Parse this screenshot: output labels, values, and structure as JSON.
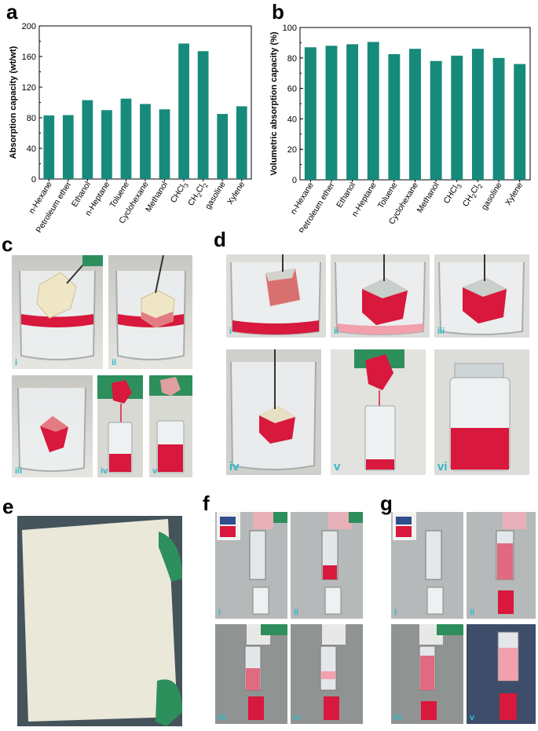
{
  "panels": {
    "a": "a",
    "b": "b",
    "c": "c",
    "d": "d",
    "e": "e",
    "f": "f",
    "g": "g"
  },
  "colors": {
    "bar": "#168a7b",
    "liquid_red": "#d8183c",
    "glove_green": "#2d8f5c",
    "roman_label": "#2fb8c7"
  },
  "chart_data": [
    {
      "type": "bar",
      "panel": "a",
      "categories": [
        "n-Hexane",
        "Petroleum ether",
        "Ethanol",
        "n-Heptane",
        "Toluene",
        "Cyclohexane",
        "Methanol",
        "CHCl3",
        "CH2Cl2",
        "gasoline",
        "Xylene"
      ],
      "values": [
        83,
        83.5,
        103,
        90,
        105,
        98,
        91,
        177,
        167,
        85,
        95
      ],
      "ylabel": "Absorption capacity (wt/wt)",
      "ylim": [
        0,
        200
      ],
      "yticks": [
        "0",
        "40",
        "80",
        "120",
        "160",
        "200"
      ]
    },
    {
      "type": "bar",
      "panel": "b",
      "categories": [
        "n-Hexane",
        "Petroleum ether",
        "Ethanol",
        "n-Heptane",
        "Toluene",
        "Cyclohexane",
        "Methanol",
        "CHCl3",
        "CH2Cl2",
        "gasoline",
        "Xylene"
      ],
      "values": [
        87,
        88,
        89,
        90.5,
        82.5,
        86,
        78,
        81.5,
        86,
        80,
        76
      ],
      "ylabel": "Volumetric absorption capacity  (%)",
      "ylim": [
        0,
        100
      ],
      "yticks": [
        "0",
        "20",
        "40",
        "60",
        "80",
        "100"
      ]
    }
  ],
  "photos": {
    "c": [
      "i",
      "ii",
      "iii",
      "iv",
      "v"
    ],
    "d": [
      "i",
      "ii",
      "iii",
      "iv",
      "v",
      "vi"
    ],
    "f": [
      "i",
      "ii",
      "iii",
      "iv"
    ],
    "g": [
      "i",
      "ii",
      "iii",
      "v"
    ]
  }
}
